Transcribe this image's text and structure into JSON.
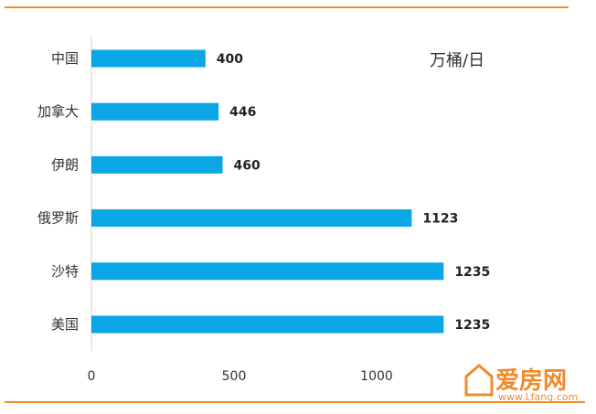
{
  "chart_data": {
    "type": "bar",
    "orientation": "horizontal",
    "categories": [
      "中国",
      "加拿大",
      "伊朗",
      "俄罗斯",
      "沙特",
      "美国"
    ],
    "values": [
      400,
      446,
      460,
      1123,
      1235,
      1235
    ],
    "unit_label": "万桶/日",
    "xlim": [
      0,
      1300
    ],
    "xticks": [
      0,
      500,
      1000
    ],
    "grid": false,
    "bar_color": "#0aa6e6",
    "rule_color": "#f28c28"
  },
  "watermark": {
    "name": "爱房网",
    "url": "www.Lfang.com"
  }
}
